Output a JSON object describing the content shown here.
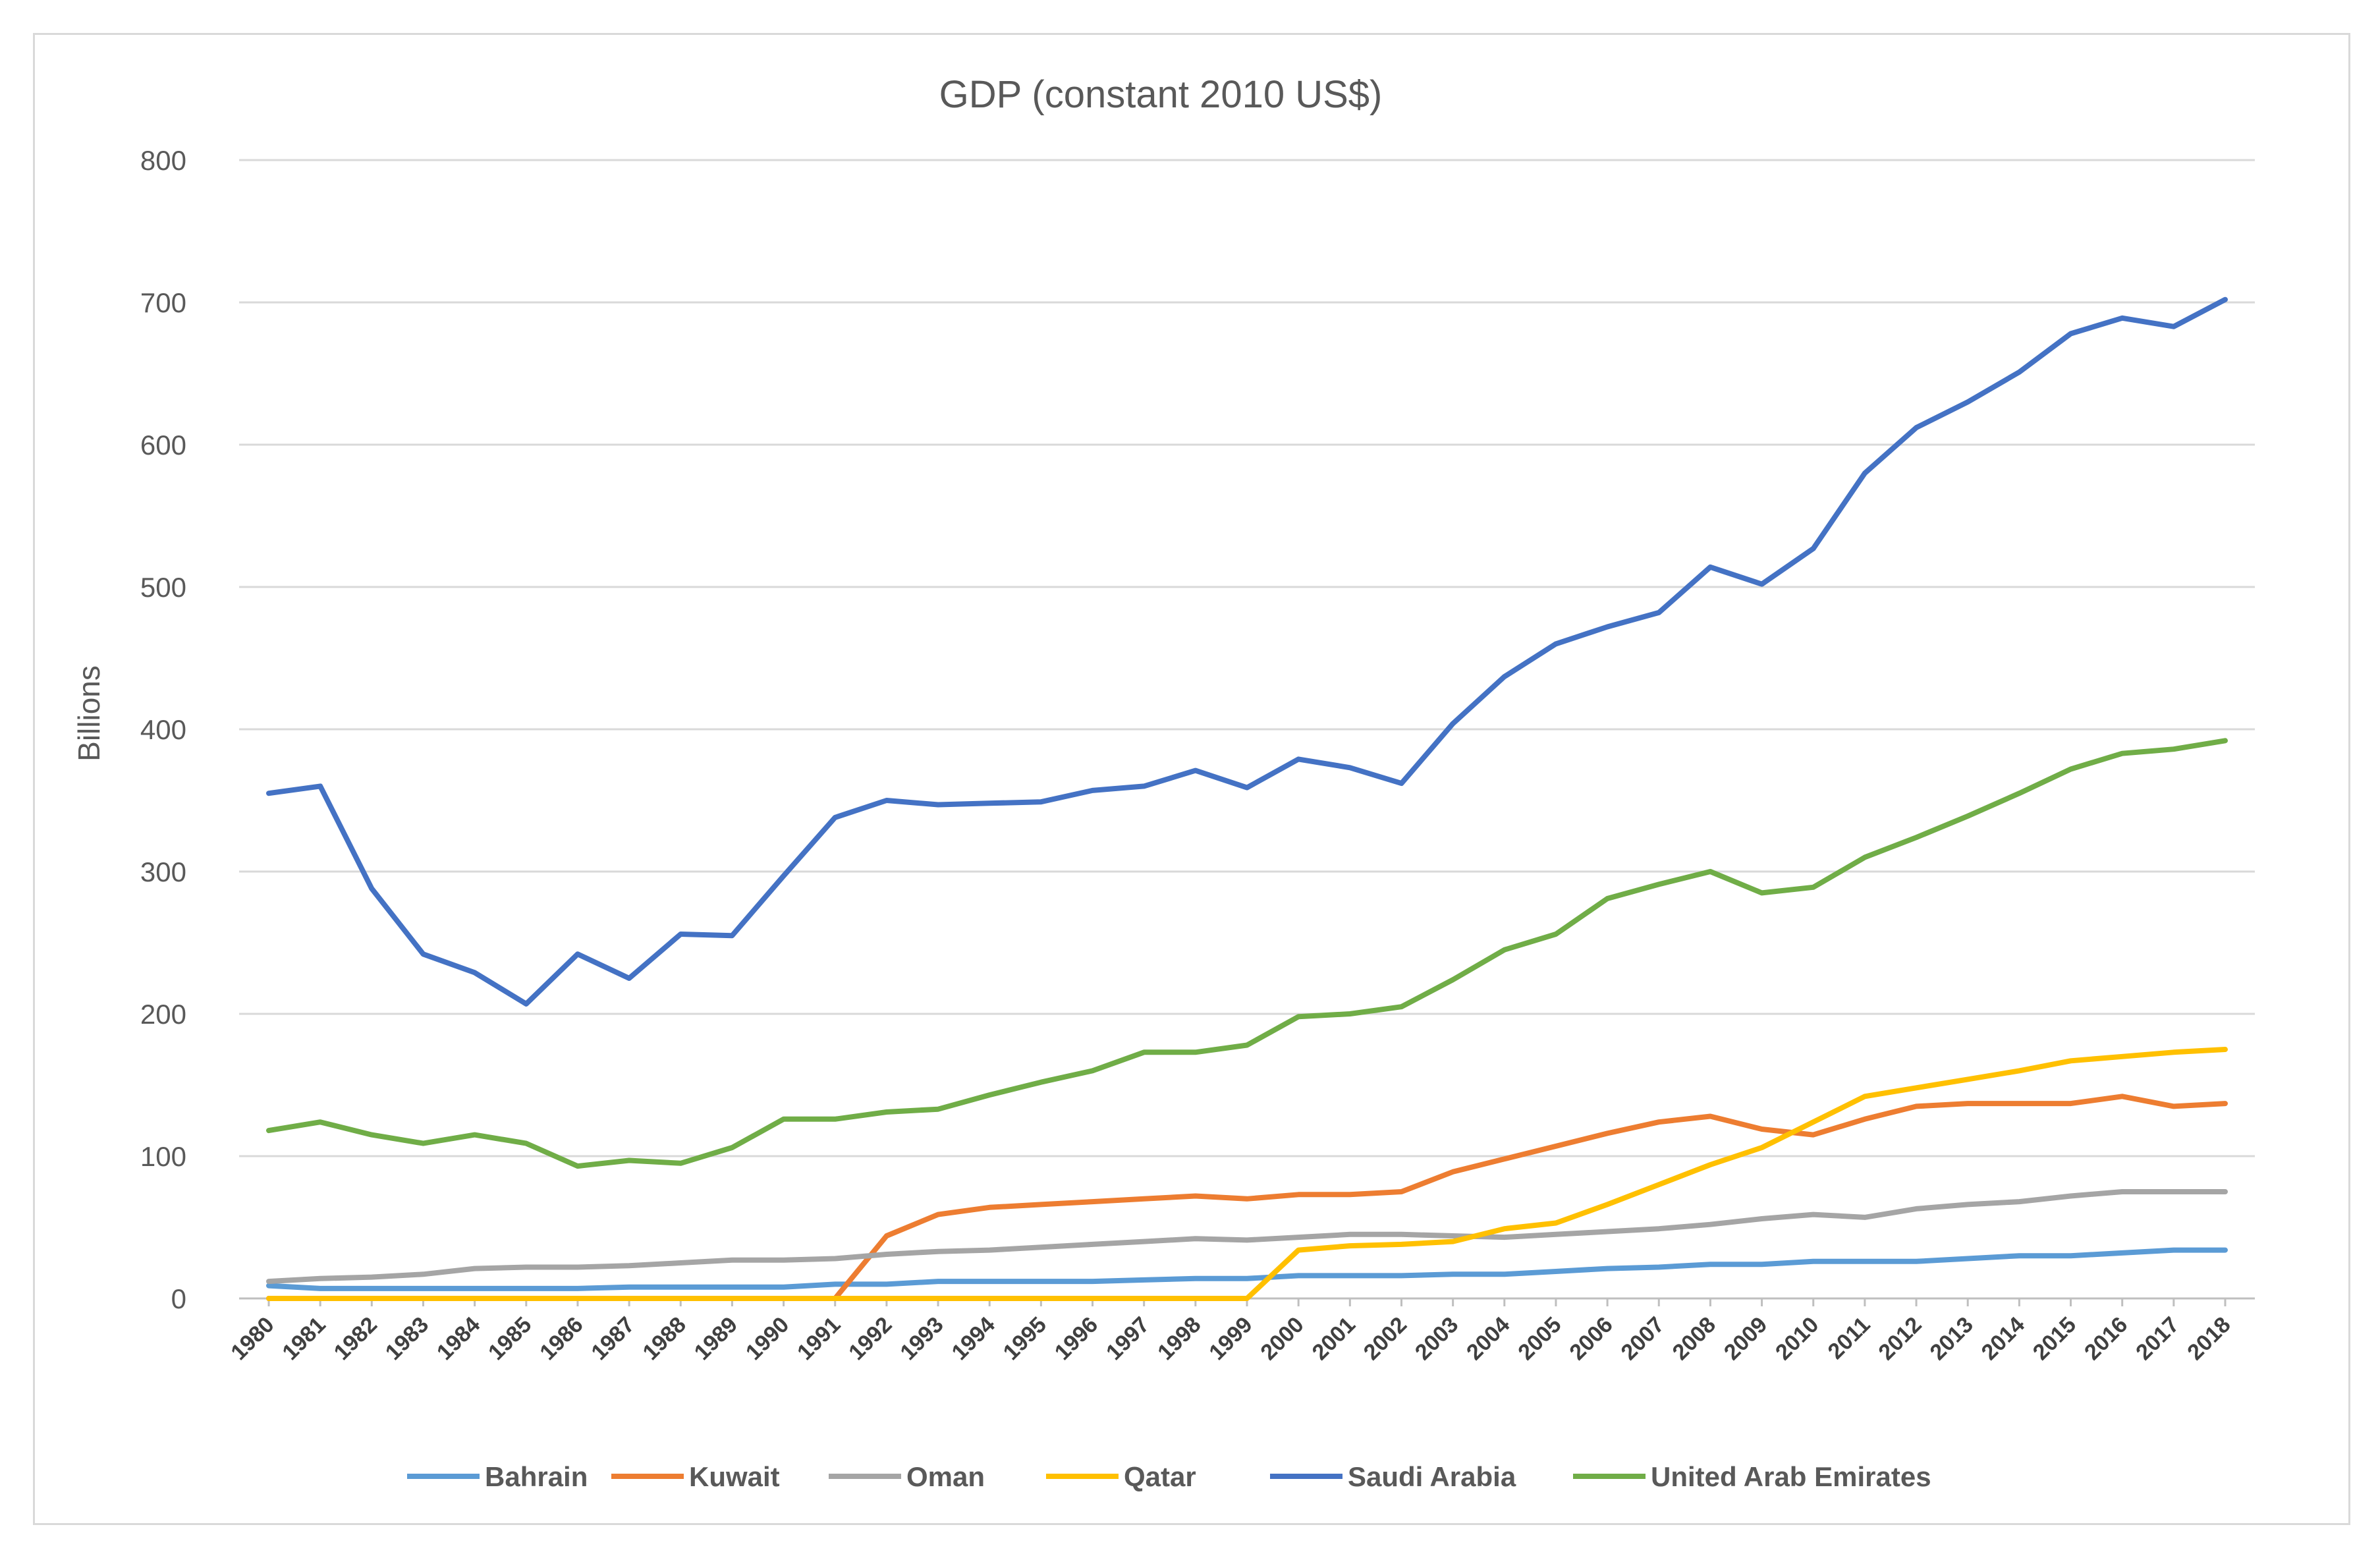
{
  "chart_data": {
    "type": "line",
    "title": "GDP (constant 2010 US$)",
    "xlabel": "",
    "ylabel": "Billions",
    "ylim": [
      0,
      800
    ],
    "yticks": [
      0,
      100,
      200,
      300,
      400,
      500,
      600,
      700,
      800
    ],
    "ytick_labels": [
      "0",
      "100",
      "200",
      "300",
      "400",
      "500",
      "600",
      "700",
      "800"
    ],
    "grid": true,
    "legend_position": "bottom",
    "categories": [
      "1980",
      "1981",
      "1982",
      "1983",
      "1984",
      "1985",
      "1986",
      "1987",
      "1988",
      "1989",
      "1990",
      "1991",
      "1992",
      "1993",
      "1994",
      "1995",
      "1996",
      "1997",
      "1998",
      "1999",
      "2000",
      "2001",
      "2002",
      "2003",
      "2004",
      "2005",
      "2006",
      "2007",
      "2008",
      "2009",
      "2010",
      "2011",
      "2012",
      "2013",
      "2014",
      "2015",
      "2016",
      "2017",
      "2018"
    ],
    "series": [
      {
        "name": "Bahrain",
        "color": "#5b9bd5",
        "values": [
          9,
          7,
          7,
          7,
          7,
          7,
          7,
          8,
          8,
          8,
          8,
          10,
          10,
          12,
          12,
          12,
          12,
          13,
          14,
          14,
          16,
          16,
          16,
          17,
          17,
          19,
          21,
          22,
          24,
          24,
          26,
          26,
          26,
          28,
          30,
          30,
          32,
          34,
          34
        ]
      },
      {
        "name": "Kuwait",
        "color": "#ed7d31",
        "values": [
          0,
          0,
          0,
          0,
          0,
          0,
          0,
          0,
          0,
          0,
          0,
          0,
          44,
          59,
          64,
          66,
          68,
          70,
          72,
          70,
          73,
          73,
          75,
          89,
          98,
          107,
          116,
          124,
          128,
          119,
          115,
          126,
          135,
          137,
          137,
          137,
          142,
          135,
          137
        ]
      },
      {
        "name": "Oman",
        "color": "#a5a5a5",
        "values": [
          12,
          14,
          15,
          17,
          21,
          22,
          22,
          23,
          25,
          27,
          27,
          28,
          31,
          33,
          34,
          36,
          38,
          40,
          42,
          41,
          43,
          45,
          45,
          44,
          43,
          45,
          47,
          49,
          52,
          56,
          59,
          57,
          63,
          66,
          68,
          72,
          75,
          75,
          75
        ]
      },
      {
        "name": "Qatar",
        "color": "#ffc000",
        "values": [
          0,
          0,
          0,
          0,
          0,
          0,
          0,
          0,
          0,
          0,
          0,
          0,
          0,
          0,
          0,
          0,
          0,
          0,
          0,
          0,
          34,
          37,
          38,
          40,
          49,
          53,
          66,
          80,
          94,
          106,
          124,
          142,
          148,
          154,
          160,
          167,
          170,
          173,
          175
        ]
      },
      {
        "name": "Saudi Arabia",
        "color": "#4472c4",
        "values": [
          355,
          360,
          288,
          242,
          229,
          207,
          242,
          225,
          256,
          255,
          297,
          338,
          350,
          347,
          348,
          349,
          357,
          360,
          371,
          359,
          379,
          373,
          362,
          404,
          437,
          460,
          472,
          482,
          514,
          502,
          527,
          580,
          612,
          630,
          651,
          678,
          689,
          683,
          702
        ]
      },
      {
        "name": "United Arab Emirates",
        "color": "#70ad47",
        "values": [
          118,
          124,
          115,
          109,
          115,
          109,
          93,
          97,
          95,
          106,
          126,
          126,
          131,
          133,
          143,
          152,
          160,
          173,
          173,
          178,
          198,
          200,
          205,
          224,
          245,
          256,
          281,
          291,
          300,
          285,
          289,
          310,
          324,
          339,
          355,
          372,
          383,
          386,
          392
        ]
      }
    ]
  }
}
